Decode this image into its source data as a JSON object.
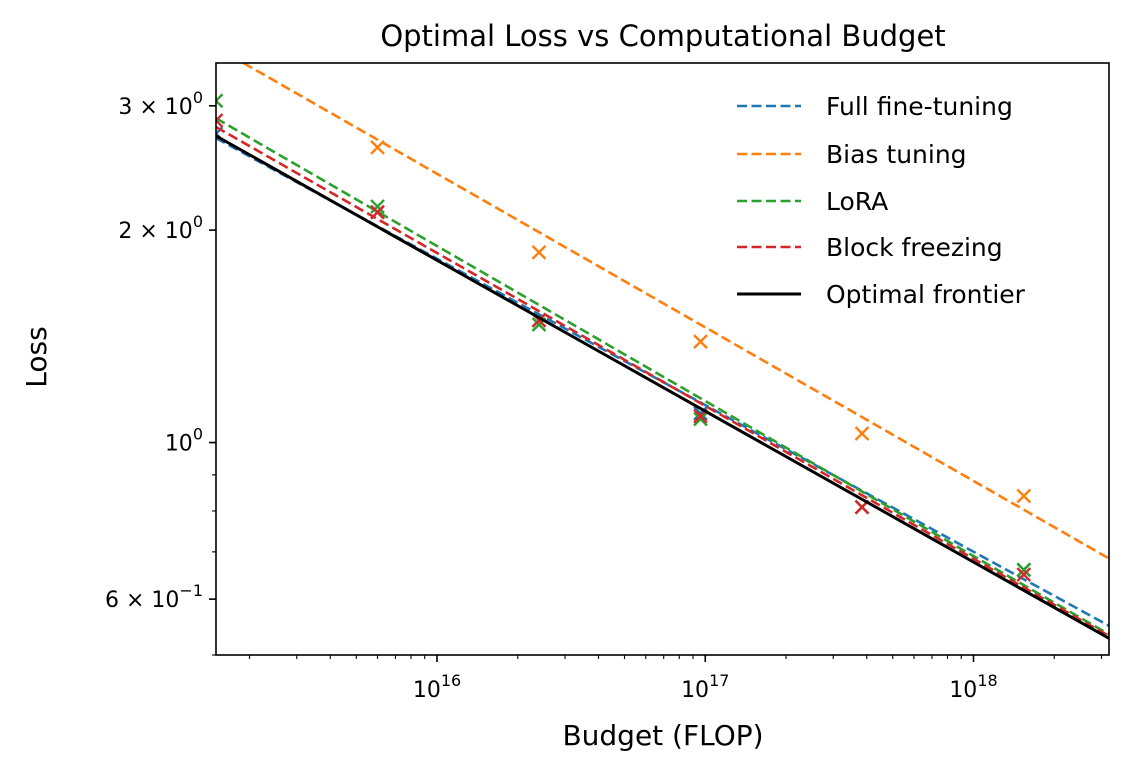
{
  "chart_data": {
    "type": "line",
    "title": "Optimal Loss vs Computational Budget",
    "xlabel": "Budget (FLOP)",
    "ylabel": "Loss",
    "xscale": "log",
    "yscale": "log",
    "xlim": [
      1500000000000000.0,
      3.2e+18
    ],
    "ylim": [
      0.5,
      3.45
    ],
    "grid": false,
    "legend_position": "top-right",
    "x_ticks": [
      {
        "value": 1e+16,
        "base": "10",
        "exp": "16"
      },
      {
        "value": 1e+17,
        "base": "10",
        "exp": "17"
      },
      {
        "value": 1e+18,
        "base": "10",
        "exp": "18"
      }
    ],
    "y_ticks": [
      {
        "value": 3.0,
        "base": "3 × 10",
        "exp": "0"
      },
      {
        "value": 2.0,
        "base": "2 × 10",
        "exp": "0"
      },
      {
        "value": 1.0,
        "base": "10",
        "exp": "0"
      },
      {
        "value": 0.6,
        "base": "6 × 10",
        "exp": "−1"
      }
    ],
    "series": [
      {
        "name": "Full fine-tuning",
        "color": "#1f77b4",
        "line": [
          [
            1500000000000000.0,
            2.7
          ],
          [
            1e+17,
            1.13
          ],
          [
            3.2e+18,
            0.55
          ]
        ],
        "points": [
          [
            1500000000000000.0,
            2.74
          ],
          [
            6000000000000000.0,
            2.12
          ],
          [
            2.4e+16,
            1.49
          ],
          [
            9.6e+16,
            1.1
          ],
          [
            3.84e+17,
            0.81
          ],
          [
            1.54e+18,
            0.66
          ]
        ]
      },
      {
        "name": "Bias tuning",
        "color": "#ff7f0e",
        "line": [
          [
            1900000000000000.0,
            3.45
          ],
          [
            3.2e+18,
            0.685
          ]
        ],
        "points": [
          [
            6000000000000000.0,
            2.62
          ],
          [
            2.4e+16,
            1.86
          ],
          [
            9.6e+16,
            1.39
          ],
          [
            3.84e+17,
            1.03
          ],
          [
            1.54e+18,
            0.84
          ]
        ]
      },
      {
        "name": "LoRA",
        "color": "#2ca02c",
        "line": [
          [
            1500000000000000.0,
            2.88
          ],
          [
            3.2e+18,
            0.535
          ]
        ],
        "points": [
          [
            1500000000000000.0,
            3.05
          ],
          [
            6000000000000000.0,
            2.16
          ],
          [
            2.4e+16,
            1.47
          ],
          [
            9.6e+16,
            1.08
          ],
          [
            3.84e+17,
            0.81
          ],
          [
            1.54e+18,
            0.66
          ]
        ]
      },
      {
        "name": "Block freezing",
        "color": "#d62728",
        "line": [
          [
            1500000000000000.0,
            2.8
          ],
          [
            3.2e+18,
            0.532
          ]
        ],
        "points": [
          [
            1500000000000000.0,
            2.86
          ],
          [
            6000000000000000.0,
            2.12
          ],
          [
            2.4e+16,
            1.49
          ],
          [
            9.6e+16,
            1.09
          ],
          [
            3.84e+17,
            0.81
          ],
          [
            1.54e+18,
            0.65
          ]
        ]
      },
      {
        "name": "Optimal frontier",
        "color": "#000000",
        "line": [
          [
            1500000000000000.0,
            2.72
          ],
          [
            3.2e+18,
            0.528
          ]
        ],
        "points": []
      }
    ]
  }
}
